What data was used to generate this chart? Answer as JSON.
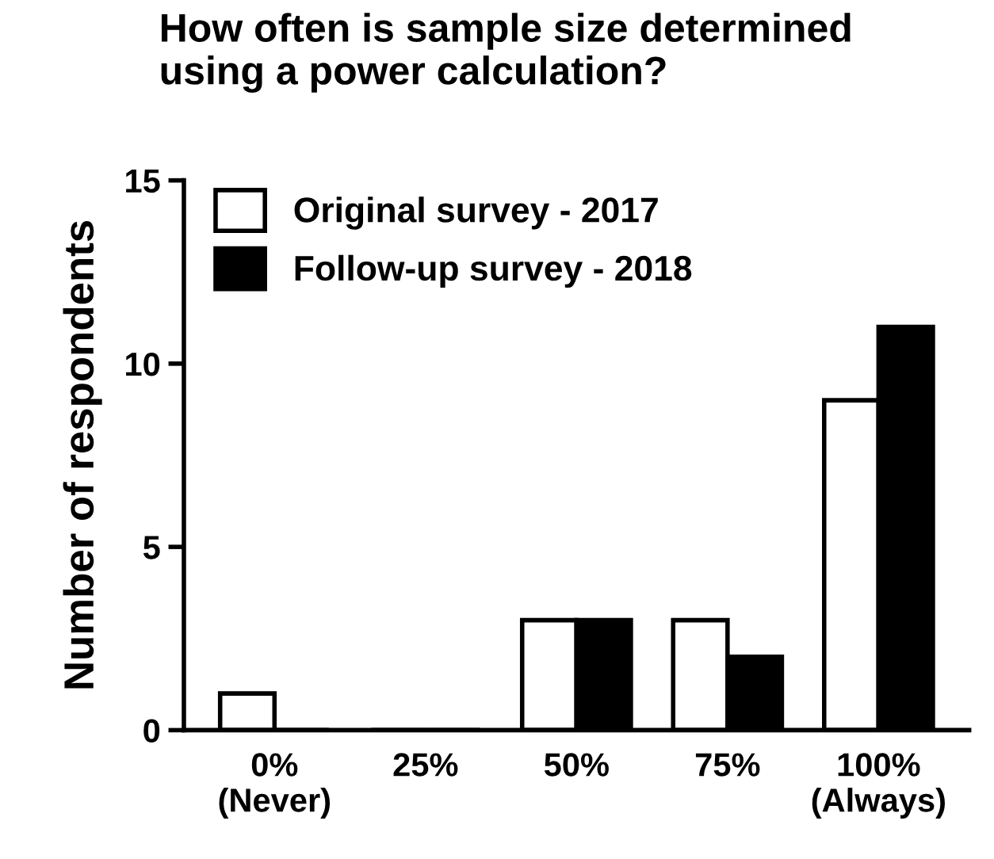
{
  "chart_data": {
    "type": "bar",
    "title": "How often is sample size determined\nusing a power calculation?",
    "ylabel": "Number of respondents",
    "categories": [
      "0%\n(Never)",
      "25%",
      "50%",
      "75%",
      "100%\n(Always)"
    ],
    "series": [
      {
        "name": "Original survey - 2017",
        "color": "#ffffff",
        "values": [
          1,
          0,
          3,
          3,
          9
        ]
      },
      {
        "name": "Follow-up survey - 2018",
        "color": "#000000",
        "values": [
          0,
          0,
          3,
          2,
          11
        ]
      }
    ],
    "ylim": [
      0,
      15
    ],
    "yticks": [
      0,
      5,
      10,
      15
    ],
    "grid": false,
    "legend": "top left"
  }
}
